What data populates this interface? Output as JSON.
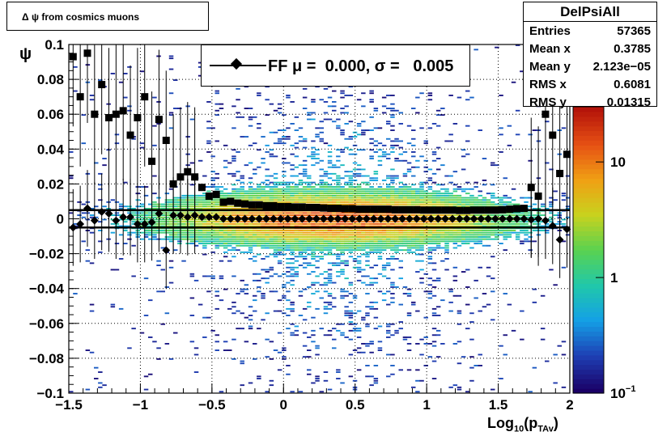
{
  "title_box": {
    "text": "Δ ψ from cosmics muons"
  },
  "stats": {
    "name": "DelPsiAll",
    "rows": [
      {
        "key": "Entries",
        "value": "57365"
      },
      {
        "key": "Mean x",
        "value": "0.3785"
      },
      {
        "key": "Mean y",
        "value": "2.123e−05"
      },
      {
        "key": "RMS x",
        "value": "0.6081"
      },
      {
        "key": "RMS y",
        "value": "0.01315"
      }
    ]
  },
  "legend": {
    "label": "FF μ =  0.000, σ =   0.005"
  },
  "chart_data": {
    "type": "heatmap",
    "xlabel": "Log10(pTAv)",
    "ylabel": "ψ",
    "xlim": [
      -1.5,
      2.0
    ],
    "ylim": [
      -0.1,
      0.1
    ],
    "grid": true,
    "log_z": true,
    "zlim": [
      0.1,
      30
    ],
    "x_ticks": [
      "−1.5",
      "−1",
      "−0.5",
      "0",
      "0.5",
      "1",
      "1.5",
      "2"
    ],
    "x_tick_values": [
      -1.5,
      -1,
      -0.5,
      0,
      0.5,
      1,
      1.5,
      2
    ],
    "y_ticks": [
      "0.1",
      "0.08",
      "0.06",
      "0.04",
      "0.02",
      "0",
      "−0.02",
      "−0.04",
      "−0.06",
      "−0.08",
      "−0.1"
    ],
    "y_tick_values": [
      0.1,
      0.08,
      0.06,
      0.04,
      0.02,
      0,
      -0.02,
      -0.04,
      -0.06,
      -0.08,
      -0.1
    ],
    "z_ticks": [
      "10",
      "1",
      "10^-1"
    ],
    "z_tick_values": [
      10,
      1,
      0.1
    ],
    "fit_lines": [
      0.005,
      -0.005
    ],
    "profile_sigma_x": [
      -1.47,
      -1.42,
      -1.37,
      -1.32,
      -1.27,
      -1.22,
      -1.17,
      -1.12,
      -1.07,
      -1.02,
      -0.97,
      -0.92,
      -0.87,
      -0.82,
      -0.77,
      -0.72,
      -0.67,
      -0.62,
      -0.57,
      -0.52,
      -0.47,
      -0.42,
      -0.37,
      -0.32,
      -0.27,
      -0.22,
      -0.17,
      -0.12,
      -0.07,
      -0.02,
      0.03,
      0.08,
      0.13,
      0.18,
      0.23,
      0.28,
      0.33,
      0.38,
      0.43,
      0.48,
      0.53,
      0.58,
      0.63,
      0.68,
      0.73,
      0.78,
      0.83,
      0.88,
      0.93,
      0.98,
      1.03,
      1.08,
      1.13,
      1.18,
      1.23,
      1.28,
      1.33,
      1.38,
      1.43,
      1.48,
      1.53,
      1.58,
      1.63,
      1.68,
      1.73,
      1.78,
      1.83,
      1.88,
      1.93,
      1.98
    ],
    "profile_sigma_y": [
      0.093,
      0.07,
      0.095,
      0.06,
      0.077,
      0.058,
      0.06,
      0.062,
      0.048,
      0.058,
      0.07,
      0.033,
      0.057,
      0.045,
      0.02,
      0.024,
      0.027,
      0.024,
      0.018,
      0.013,
      0.014,
      0.0095,
      0.01,
      0.009,
      0.0085,
      0.008,
      0.008,
      0.0075,
      0.0075,
      0.007,
      0.007,
      0.0068,
      0.0068,
      0.0065,
      0.0065,
      0.0062,
      0.006,
      0.006,
      0.0058,
      0.0058,
      0.0055,
      0.0055,
      0.0055,
      0.0055,
      0.0055,
      0.0052,
      0.0052,
      0.0052,
      0.0052,
      0.005,
      0.005,
      0.005,
      0.005,
      0.005,
      0.0048,
      0.0048,
      0.005,
      0.005,
      0.005,
      0.005,
      0.0052,
      0.0055,
      0.0058,
      0.006,
      0.018,
      0.013,
      0.06,
      0.048,
      0.026,
      0.037
    ],
    "profile_mean_x": [
      -1.47,
      -1.42,
      -1.37,
      -1.32,
      -1.27,
      -1.22,
      -1.17,
      -1.12,
      -1.07,
      -1.02,
      -0.97,
      -0.92,
      -0.87,
      -0.82,
      -0.77,
      -0.72,
      -0.67,
      -0.62,
      -0.57,
      -0.52,
      -0.47,
      -0.42,
      -0.37,
      -0.32,
      -0.27,
      -0.22,
      -0.17,
      -0.12,
      -0.07,
      -0.02,
      0.03,
      0.08,
      0.13,
      0.18,
      0.23,
      0.28,
      0.33,
      0.38,
      0.43,
      0.48,
      0.53,
      0.58,
      0.63,
      0.68,
      0.73,
      0.78,
      0.83,
      0.88,
      0.93,
      0.98,
      1.03,
      1.08,
      1.13,
      1.18,
      1.23,
      1.28,
      1.33,
      1.38,
      1.43,
      1.48,
      1.53,
      1.58,
      1.63,
      1.68,
      1.73,
      1.78,
      1.83,
      1.88,
      1.93,
      1.98
    ],
    "profile_mean_y": [
      -0.005,
      -0.003,
      0.006,
      -0.001,
      0.004,
      0.003,
      -0.001,
      0.001,
      0.001,
      -0.003,
      -0.003,
      -0.002,
      0.003,
      -0.018,
      0.002,
      0.002,
      0.001,
      0.002,
      0.001,
      0.001,
      0.001,
      0.0,
      0.0,
      0.0,
      0.0,
      0.0,
      0.0,
      0.0,
      0.0,
      0.0,
      0.0,
      0.0,
      0.0,
      0.0,
      0.0,
      0.0,
      0.0,
      0.0,
      0.0,
      0.0,
      0.0,
      0.0,
      0.0,
      0.0,
      0.0,
      0.0,
      0.0,
      0.0,
      0.0,
      0.0,
      0.0,
      0.0,
      0.0,
      0.0,
      0.0,
      0.0,
      0.0,
      0.0,
      0.0,
      0.0,
      0.0,
      0.0,
      0.0,
      0.0,
      -0.0005,
      0.0,
      -0.001,
      -0.004,
      -0.012,
      -0.006
    ]
  },
  "colors": {
    "frame": "#000000",
    "grid": "#000000",
    "markers": "#000000",
    "palette": [
      "#1a0066",
      "#1e3fb4",
      "#14a0e6",
      "#20c8aa",
      "#5ad250",
      "#c8d21e",
      "#f0a014",
      "#e65014",
      "#b4140a"
    ]
  }
}
